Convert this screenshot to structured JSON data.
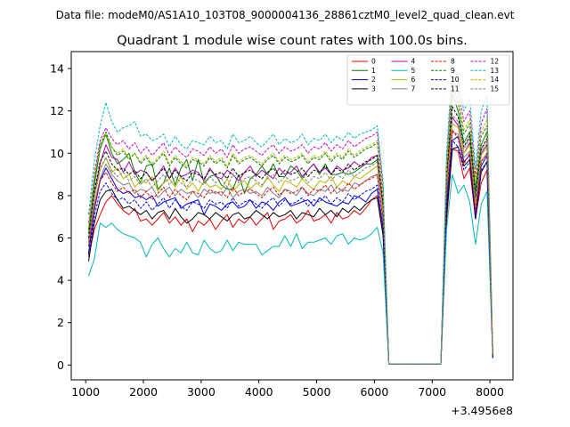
{
  "figure": {
    "suptitle": "Data file: modeM0/AS1A10_103T08_9000004136_28861cztM0_level2_quad_clean.evt",
    "title": "Quadrant 1 module wise count rates with 100.0s bins.",
    "x_offset_label": "+3.4956e8"
  },
  "chart_data": {
    "type": "line",
    "title": "Quadrant 1 module wise count rates with 100.0s bins.",
    "xlabel": "",
    "ylabel": "",
    "x_offset": "+3.4956e8",
    "xlim": [
      750,
      8400
    ],
    "ylim": [
      -0.7,
      14.8
    ],
    "xticks": [
      1000,
      2000,
      3000,
      4000,
      5000,
      6000,
      7000,
      8000
    ],
    "yticks": [
      0,
      2,
      4,
      6,
      8,
      10,
      12,
      14
    ],
    "grid": false,
    "legend_position": "top-right",
    "legend_columns": 4,
    "x": [
      1050,
      1150,
      1250,
      1350,
      1450,
      1550,
      1650,
      1750,
      1850,
      1950,
      2050,
      2150,
      2250,
      2350,
      2450,
      2550,
      2650,
      2750,
      2850,
      2950,
      3050,
      3150,
      3250,
      3350,
      3450,
      3550,
      3650,
      3750,
      3850,
      3950,
      4050,
      4150,
      4250,
      4350,
      4450,
      4550,
      4650,
      4750,
      4850,
      4950,
      5050,
      5150,
      5250,
      5350,
      5450,
      5550,
      5650,
      5750,
      5850,
      5950,
      6050,
      6150,
      6250,
      7150,
      7250,
      7350,
      7450,
      7550,
      7650,
      7750,
      7850,
      7950,
      8050
    ],
    "series": [
      {
        "name": "0",
        "color": "#e00000",
        "dash": "solid",
        "values": [
          5.1,
          6.4,
          7.1,
          7.7,
          8.0,
          7.6,
          7.3,
          7.1,
          7.4,
          6.8,
          6.9,
          6.6,
          6.9,
          7.2,
          6.7,
          7.0,
          6.6,
          6.9,
          6.3,
          6.8,
          6.6,
          6.9,
          6.4,
          6.8,
          7.1,
          6.5,
          6.9,
          6.7,
          7.0,
          6.6,
          6.9,
          7.2,
          6.4,
          6.8,
          6.9,
          7.1,
          6.7,
          6.9,
          7.3,
          6.8,
          6.9,
          7.1,
          6.7,
          7.2,
          6.9,
          7.0,
          7.3,
          7.1,
          7.4,
          7.8,
          8.0,
          6.2,
          0.05,
          0.05,
          6.8,
          10.2,
          10.1,
          8.8,
          9.3,
          6.9,
          8.6,
          9.2,
          0.4
        ]
      },
      {
        "name": "1",
        "color": "#007f00",
        "dash": "solid",
        "values": [
          6.2,
          8.5,
          10.2,
          10.9,
          10.0,
          9.5,
          9.7,
          10.0,
          9.1,
          8.6,
          9.4,
          9.5,
          8.3,
          8.6,
          9.3,
          8.5,
          9.3,
          9.7,
          8.7,
          9.7,
          8.6,
          8.9,
          9.0,
          8.5,
          8.3,
          8.3,
          9.0,
          8.1,
          8.8,
          9.0,
          9.4,
          9.0,
          9.5,
          8.9,
          8.9,
          9.4,
          9.2,
          8.8,
          9.2,
          9.5,
          9.0,
          9.5,
          9.0,
          9.0,
          9.1,
          9.0,
          9.1,
          9.3,
          9.5,
          9.5,
          9.7,
          7.5,
          0.05,
          0.05,
          8.8,
          12.8,
          12.0,
          10.5,
          11.0,
          8.2,
          10.4,
          11.0,
          0.5
        ]
      },
      {
        "name": "2",
        "color": "#0000e0",
        "dash": "solid",
        "values": [
          5.3,
          7.3,
          8.7,
          9.3,
          8.8,
          8.3,
          8.1,
          8.2,
          7.9,
          8.0,
          7.8,
          8.0,
          7.5,
          7.7,
          7.8,
          7.9,
          7.4,
          7.6,
          7.7,
          7.8,
          7.1,
          7.6,
          7.5,
          7.3,
          7.6,
          7.7,
          7.4,
          7.5,
          7.8,
          7.4,
          7.7,
          7.6,
          7.3,
          7.7,
          7.9,
          7.5,
          7.6,
          7.7,
          7.8,
          7.5,
          7.9,
          7.7,
          7.6,
          7.5,
          7.7,
          7.6,
          8.0,
          7.9,
          7.7,
          8.1,
          8.3,
          6.5,
          0.05,
          0.05,
          7.5,
          10.6,
          10.8,
          9.6,
          9.9,
          7.2,
          9.4,
          9.9,
          0.4
        ]
      },
      {
        "name": "3",
        "color": "#000000",
        "dash": "solid",
        "values": [
          4.9,
          6.7,
          7.8,
          8.2,
          8.3,
          7.8,
          7.4,
          7.5,
          7.3,
          7.1,
          7.3,
          6.9,
          7.2,
          7.3,
          6.9,
          7.4,
          7.0,
          6.7,
          6.9,
          7.2,
          7.1,
          6.9,
          7.2,
          7.0,
          6.8,
          7.1,
          7.2,
          6.9,
          7.0,
          7.3,
          7.1,
          6.9,
          7.2,
          7.0,
          7.1,
          7.3,
          6.9,
          7.2,
          7.1,
          7.0,
          7.4,
          7.1,
          7.3,
          7.0,
          7.4,
          7.2,
          7.5,
          7.3,
          7.6,
          7.8,
          7.9,
          6.1,
          0.05,
          0.05,
          7.1,
          10.2,
          10.3,
          9.4,
          9.7,
          6.9,
          9.1,
          9.6,
          0.35
        ]
      },
      {
        "name": "4",
        "color": "#b000b0",
        "dash": "solid",
        "values": [
          5.9,
          8.0,
          9.5,
          10.4,
          9.8,
          9.7,
          9.1,
          9.6,
          9.0,
          9.2,
          9.1,
          8.7,
          9.0,
          9.4,
          8.8,
          9.3,
          8.9,
          9.0,
          9.2,
          9.1,
          8.7,
          9.3,
          8.9,
          8.8,
          9.2,
          9.0,
          8.7,
          9.1,
          9.4,
          8.9,
          9.2,
          9.0,
          8.8,
          9.3,
          9.0,
          9.1,
          9.4,
          8.9,
          9.2,
          9.5,
          9.1,
          9.3,
          9.0,
          9.4,
          9.2,
          9.3,
          9.6,
          9.4,
          9.5,
          9.8,
          9.9,
          7.4,
          0.05,
          0.05,
          8.6,
          11.7,
          11.3,
          10.0,
          10.5,
          7.6,
          10.0,
          10.4,
          0.45
        ]
      },
      {
        "name": "5",
        "color": "#00b8b8",
        "dash": "solid",
        "values": [
          4.2,
          5.0,
          6.7,
          6.5,
          6.7,
          6.4,
          6.2,
          6.1,
          6.0,
          5.8,
          5.1,
          5.7,
          6.0,
          5.5,
          5.1,
          5.5,
          5.3,
          5.8,
          5.3,
          5.2,
          5.9,
          5.5,
          5.3,
          5.4,
          5.9,
          5.4,
          5.8,
          5.7,
          5.7,
          5.7,
          5.2,
          5.4,
          5.6,
          5.6,
          6.1,
          5.6,
          6.2,
          5.5,
          5.8,
          5.8,
          5.9,
          6.0,
          5.7,
          6.1,
          6.2,
          5.7,
          6.0,
          5.9,
          6.0,
          6.2,
          6.5,
          5.3,
          0.05,
          0.05,
          6.4,
          9.0,
          8.1,
          8.5,
          7.7,
          5.7,
          7.6,
          8.2,
          0.3
        ]
      },
      {
        "name": "6",
        "color": "#b8b800",
        "dash": "solid",
        "values": [
          5.8,
          7.9,
          9.2,
          9.8,
          9.1,
          9.3,
          8.8,
          9.0,
          8.4,
          8.7,
          8.6,
          8.9,
          8.2,
          8.6,
          8.8,
          8.4,
          8.9,
          8.3,
          8.6,
          8.2,
          8.7,
          8.4,
          8.5,
          8.3,
          8.8,
          8.2,
          8.5,
          8.7,
          8.3,
          8.6,
          8.4,
          8.9,
          8.5,
          8.2,
          8.7,
          8.6,
          8.4,
          8.8,
          8.5,
          8.3,
          8.7,
          8.6,
          8.9,
          8.4,
          8.7,
          8.5,
          8.9,
          8.8,
          9.0,
          9.2,
          9.4,
          7.2,
          0.05,
          0.05,
          8.4,
          11.4,
          11.2,
          10.0,
          10.4,
          7.6,
          9.9,
          10.3,
          0.45
        ]
      },
      {
        "name": "7",
        "color": "#808080",
        "dash": "solid",
        "values": [
          5.7,
          7.6,
          8.8,
          9.5,
          9.0,
          8.7,
          8.5,
          8.6,
          8.1,
          8.3,
          8.2,
          8.4,
          7.9,
          8.2,
          8.4,
          8.0,
          8.3,
          8.1,
          8.2,
          7.9,
          8.3,
          8.1,
          8.2,
          8.0,
          8.4,
          7.9,
          8.2,
          8.3,
          8.1,
          8.2,
          8.0,
          8.4,
          8.1,
          7.9,
          8.3,
          8.2,
          8.0,
          8.4,
          8.1,
          8.0,
          8.3,
          8.2,
          8.5,
          8.1,
          8.3,
          8.2,
          8.6,
          8.5,
          8.7,
          8.9,
          9.0,
          6.9,
          0.05,
          0.05,
          8.0,
          11.0,
          10.9,
          9.8,
          10.1,
          7.3,
          9.6,
          10.0,
          0.4
        ]
      },
      {
        "name": "8",
        "color": "#e00000",
        "dash": "dashed",
        "values": [
          5.6,
          7.4,
          8.7,
          9.1,
          8.6,
          8.2,
          8.4,
          8.1,
          8.3,
          7.9,
          8.2,
          7.8,
          8.1,
          8.4,
          7.9,
          8.3,
          8.0,
          7.8,
          8.2,
          8.1,
          7.9,
          8.3,
          8.1,
          8.2,
          7.9,
          8.4,
          8.0,
          8.2,
          8.3,
          8.1,
          7.9,
          8.2,
          8.4,
          8.0,
          8.3,
          8.1,
          8.2,
          8.4,
          8.0,
          8.3,
          8.2,
          8.5,
          8.1,
          8.4,
          8.2,
          8.6,
          8.3,
          8.5,
          8.7,
          8.8,
          9.0,
          6.8,
          0.05,
          0.05,
          8.0,
          11.1,
          10.7,
          9.5,
          10.0,
          7.2,
          9.6,
          10.0,
          0.4
        ]
      },
      {
        "name": "9",
        "color": "#007f00",
        "dash": "dashed",
        "values": [
          6.4,
          8.7,
          10.4,
          11.0,
          10.3,
          9.9,
          10.1,
          9.7,
          10.0,
          9.5,
          9.8,
          9.4,
          9.7,
          10.0,
          9.4,
          9.8,
          9.5,
          9.3,
          9.7,
          9.6,
          9.4,
          9.8,
          9.5,
          9.7,
          9.3,
          9.9,
          9.5,
          9.7,
          9.8,
          9.6,
          9.4,
          9.7,
          9.9,
          9.5,
          9.8,
          9.6,
          9.7,
          9.9,
          9.5,
          9.8,
          9.7,
          10.0,
          9.6,
          9.9,
          9.7,
          10.1,
          9.8,
          10.0,
          10.2,
          10.3,
          10.5,
          8.0,
          0.05,
          0.05,
          9.2,
          13.2,
          12.4,
          10.9,
          11.4,
          8.5,
          10.8,
          11.3,
          0.5
        ]
      },
      {
        "name": "10",
        "color": "#0000e0",
        "dash": "dashed",
        "values": [
          5.2,
          7.0,
          8.2,
          8.6,
          8.1,
          7.8,
          7.9,
          7.6,
          7.8,
          7.4,
          7.7,
          7.3,
          7.6,
          7.9,
          7.4,
          7.8,
          7.5,
          7.3,
          7.7,
          7.6,
          7.4,
          7.8,
          7.6,
          7.7,
          7.4,
          7.9,
          7.5,
          7.7,
          7.8,
          7.6,
          7.4,
          7.7,
          7.9,
          7.5,
          7.8,
          7.6,
          7.7,
          7.9,
          7.5,
          7.8,
          7.7,
          8.0,
          7.6,
          7.9,
          7.7,
          8.1,
          7.8,
          8.0,
          8.2,
          8.3,
          8.5,
          6.4,
          0.05,
          0.05,
          7.6,
          10.6,
          10.3,
          9.2,
          9.6,
          6.9,
          9.2,
          9.6,
          0.35
        ]
      },
      {
        "name": "11",
        "color": "#000000",
        "dash": "dashed",
        "values": [
          6.0,
          8.2,
          9.6,
          10.1,
          9.5,
          9.2,
          9.3,
          9.0,
          9.2,
          8.8,
          9.1,
          8.7,
          9.0,
          9.3,
          8.8,
          9.2,
          8.9,
          8.7,
          9.1,
          9.0,
          8.8,
          9.2,
          9.0,
          9.1,
          8.8,
          9.3,
          8.9,
          9.1,
          9.2,
          9.0,
          8.8,
          9.1,
          9.3,
          8.9,
          9.2,
          9.0,
          9.1,
          9.3,
          8.9,
          9.2,
          9.1,
          9.4,
          9.0,
          9.3,
          9.1,
          9.5,
          9.2,
          9.4,
          9.6,
          9.7,
          9.9,
          7.6,
          0.05,
          0.05,
          8.9,
          12.2,
          11.7,
          10.3,
          10.8,
          7.9,
          10.2,
          10.7,
          0.45
        ]
      },
      {
        "name": "12",
        "color": "#c000c0",
        "dash": "dashed",
        "values": [
          6.7,
          9.0,
          10.6,
          11.2,
          10.7,
          10.4,
          10.6,
          10.2,
          10.5,
          10.0,
          10.3,
          9.9,
          10.2,
          10.5,
          9.9,
          10.3,
          10.0,
          9.8,
          10.2,
          10.1,
          9.9,
          10.3,
          10.0,
          10.2,
          9.8,
          10.4,
          10.0,
          10.2,
          10.3,
          10.1,
          9.9,
          10.2,
          10.4,
          10.0,
          10.3,
          10.1,
          10.2,
          10.4,
          10.0,
          10.3,
          10.2,
          10.5,
          10.1,
          10.4,
          10.2,
          10.6,
          10.3,
          10.5,
          10.7,
          10.8,
          11.0,
          8.4,
          0.05,
          0.05,
          9.6,
          13.5,
          12.9,
          11.5,
          12.0,
          8.9,
          11.4,
          12.1,
          0.55
        ]
      },
      {
        "name": "13",
        "color": "#00b8b8",
        "dash": "dashed",
        "values": [
          7.1,
          9.6,
          11.3,
          12.4,
          11.5,
          11.0,
          11.2,
          11.3,
          11.5,
          10.8,
          10.9,
          10.6,
          10.7,
          10.9,
          10.3,
          10.8,
          10.4,
          10.2,
          10.6,
          10.5,
          10.4,
          10.8,
          10.5,
          10.6,
          10.2,
          10.9,
          10.5,
          10.6,
          10.8,
          10.5,
          10.3,
          10.6,
          10.9,
          10.4,
          10.7,
          10.5,
          10.6,
          10.9,
          10.4,
          10.7,
          10.6,
          10.9,
          10.5,
          10.8,
          10.6,
          11.0,
          10.7,
          10.9,
          11.0,
          11.1,
          11.3,
          8.7,
          0.05,
          0.05,
          10.0,
          14.3,
          13.4,
          12.0,
          12.6,
          9.3,
          12.0,
          12.7,
          0.6
        ]
      },
      {
        "name": "14",
        "color": "#b8b800",
        "dash": "dashed",
        "values": [
          6.5,
          8.8,
          10.3,
          10.9,
          10.3,
          10.0,
          10.2,
          9.8,
          10.0,
          9.6,
          9.9,
          9.5,
          9.8,
          10.1,
          9.5,
          9.9,
          9.6,
          9.4,
          9.8,
          9.7,
          9.5,
          9.9,
          9.6,
          9.8,
          9.4,
          10.0,
          9.6,
          9.8,
          9.9,
          9.7,
          9.5,
          9.8,
          10.0,
          9.6,
          9.9,
          9.7,
          9.8,
          10.0,
          9.6,
          9.9,
          9.8,
          10.1,
          9.7,
          10.0,
          9.8,
          10.2,
          9.9,
          10.1,
          10.3,
          10.4,
          10.6,
          8.1,
          0.05,
          0.05,
          9.3,
          13.0,
          12.5,
          11.1,
          11.6,
          8.6,
          11.0,
          11.6,
          0.5
        ]
      },
      {
        "name": "15",
        "color": "#808080",
        "dash": "dashed",
        "values": [
          5.9,
          8.0,
          9.3,
          9.8,
          9.2,
          8.9,
          9.1,
          8.7,
          8.9,
          8.5,
          8.8,
          8.4,
          8.7,
          9.0,
          8.5,
          8.9,
          8.6,
          8.4,
          8.8,
          8.7,
          8.5,
          8.9,
          8.6,
          8.8,
          8.4,
          9.0,
          8.6,
          8.8,
          8.9,
          8.7,
          8.5,
          8.8,
          9.0,
          8.6,
          8.9,
          8.7,
          8.8,
          9.0,
          8.6,
          8.9,
          8.8,
          9.1,
          8.7,
          9.0,
          8.8,
          9.2,
          8.9,
          9.1,
          9.3,
          9.4,
          9.6,
          7.3,
          0.05,
          0.05,
          8.6,
          11.8,
          11.5,
          10.2,
          10.7,
          7.8,
          10.1,
          10.6,
          0.45
        ]
      }
    ]
  }
}
